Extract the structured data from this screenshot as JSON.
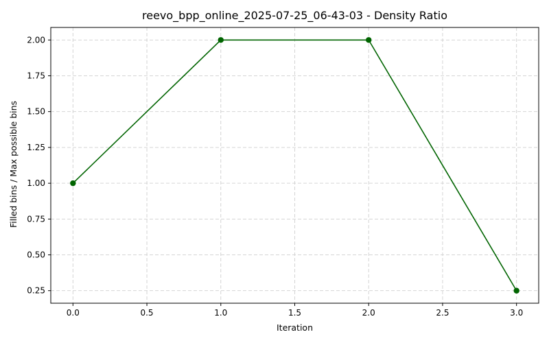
{
  "chart_data": {
    "type": "line",
    "title": "reevo_bpp_online_2025-07-25_06-43-03 - Density Ratio",
    "xlabel": "Iteration",
    "ylabel": "Filled bins / Max possible bins",
    "xlim": [
      -0.15,
      3.15
    ],
    "ylim": [
      0.1625,
      2.0875
    ],
    "xticks": [
      0.0,
      0.5,
      1.0,
      1.5,
      2.0,
      2.5,
      3.0
    ],
    "xtick_labels": [
      "0.0",
      "0.5",
      "1.0",
      "1.5",
      "2.0",
      "2.5",
      "3.0"
    ],
    "yticks": [
      0.25,
      0.5,
      0.75,
      1.0,
      1.25,
      1.5,
      1.75,
      2.0
    ],
    "ytick_labels": [
      "0.25",
      "0.50",
      "0.75",
      "1.00",
      "1.25",
      "1.50",
      "1.75",
      "2.00"
    ],
    "grid": true,
    "series": [
      {
        "color": "#006400",
        "marker": "circle",
        "x": [
          0,
          1,
          2,
          3
        ],
        "y": [
          1.0,
          2.0,
          2.0,
          0.25
        ]
      }
    ]
  }
}
